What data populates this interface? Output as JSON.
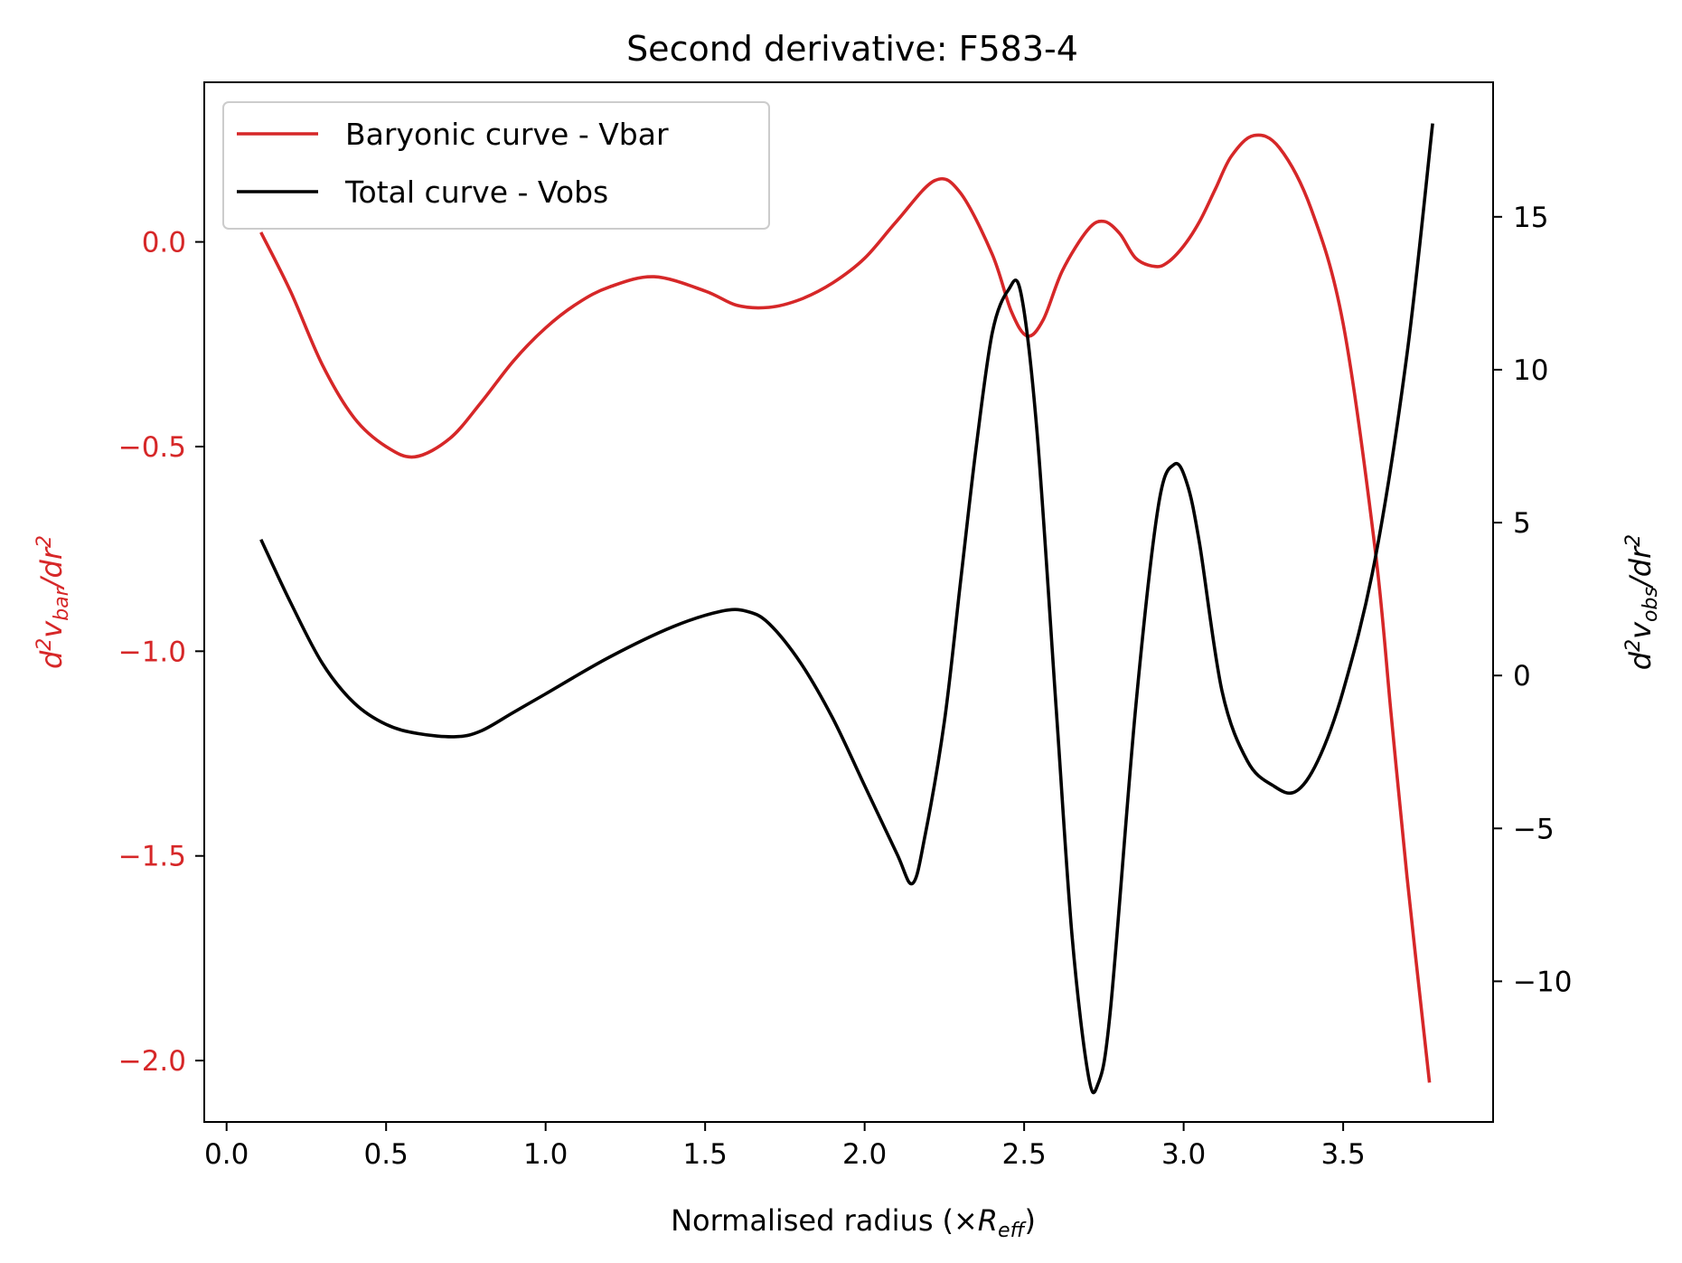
{
  "chart_data": {
    "type": "line",
    "title": "Second derivative: F583-4",
    "xlabel": "Normalised radius",
    "xlabel_math": {
      "prefix": "(×",
      "symbol": "R",
      "subscript": "eff",
      "suffix": ")"
    },
    "ylabel_left": {
      "d": "d",
      "sup": "2",
      "v": "v",
      "sub": "bar",
      "rest": "/dr",
      "sup2": "2"
    },
    "ylabel_right": {
      "d": "d",
      "sup": "2",
      "v": "v",
      "sub": "obs",
      "rest": "/dr",
      "sup2": "2"
    },
    "xlim": [
      -0.07,
      3.97
    ],
    "ylim_left": [
      -2.15,
      0.39
    ],
    "ylim_right": [
      -14.6,
      19.4
    ],
    "x_ticks": [
      0.0,
      0.5,
      1.0,
      1.5,
      2.0,
      2.5,
      3.0,
      3.5
    ],
    "x_tick_labels": [
      "0.0",
      "0.5",
      "1.0",
      "1.5",
      "2.0",
      "2.5",
      "3.0",
      "3.5"
    ],
    "y_left_ticks": [
      0.0,
      -0.5,
      -1.0,
      -1.5,
      -2.0
    ],
    "y_left_tick_labels": [
      "0.0",
      "−0.5",
      "−1.0",
      "−1.5",
      "−2.0"
    ],
    "y_right_ticks": [
      15,
      10,
      5,
      0,
      -5,
      -10
    ],
    "y_right_tick_labels": [
      "15",
      "10",
      "5",
      "0",
      "−5",
      "−10"
    ],
    "grid": false,
    "legend_position": "top-left",
    "left_axis_color": "#d62728",
    "right_axis_color": "#000000",
    "series": [
      {
        "name": "Baryonic curve - Vbar",
        "axis": "left",
        "color": "#d62728",
        "x": [
          0.11,
          0.2,
          0.3,
          0.4,
          0.5,
          0.59,
          0.7,
          0.8,
          0.9,
          1.0,
          1.1,
          1.2,
          1.34,
          1.5,
          1.6,
          1.7,
          1.8,
          1.9,
          2.0,
          2.1,
          2.22,
          2.3,
          2.4,
          2.46,
          2.51,
          2.56,
          2.62,
          2.7,
          2.75,
          2.8,
          2.85,
          2.91,
          2.95,
          3.0,
          3.05,
          3.1,
          3.15,
          3.22,
          3.3,
          3.4,
          3.5,
          3.6,
          3.65,
          3.7,
          3.77
        ],
        "y": [
          0.02,
          -0.12,
          -0.3,
          -0.43,
          -0.5,
          -0.525,
          -0.48,
          -0.39,
          -0.29,
          -0.21,
          -0.15,
          -0.11,
          -0.085,
          -0.12,
          -0.155,
          -0.16,
          -0.14,
          -0.1,
          -0.04,
          0.05,
          0.15,
          0.12,
          -0.03,
          -0.17,
          -0.23,
          -0.19,
          -0.07,
          0.03,
          0.05,
          0.02,
          -0.04,
          -0.06,
          -0.05,
          -0.01,
          0.05,
          0.13,
          0.21,
          0.26,
          0.23,
          0.08,
          -0.2,
          -0.75,
          -1.15,
          -1.55,
          -2.05
        ]
      },
      {
        "name": "Total curve - Vobs",
        "axis": "right",
        "color": "#000000",
        "x": [
          0.11,
          0.2,
          0.3,
          0.4,
          0.5,
          0.6,
          0.72,
          0.8,
          0.9,
          1.0,
          1.2,
          1.4,
          1.55,
          1.63,
          1.7,
          1.8,
          1.9,
          2.0,
          2.1,
          2.15,
          2.19,
          2.25,
          2.3,
          2.35,
          2.4,
          2.45,
          2.49,
          2.54,
          2.6,
          2.65,
          2.7,
          2.73,
          2.77,
          2.85,
          2.92,
          2.97,
          3.01,
          3.05,
          3.12,
          3.2,
          3.28,
          3.35,
          3.42,
          3.5,
          3.6,
          3.7,
          3.78
        ],
        "y": [
          4.4,
          2.4,
          0.4,
          -0.9,
          -1.6,
          -1.9,
          -2.0,
          -1.8,
          -1.2,
          -0.6,
          0.6,
          1.6,
          2.1,
          2.1,
          1.7,
          0.4,
          -1.4,
          -3.6,
          -5.8,
          -6.8,
          -5.2,
          -1.5,
          3.0,
          7.5,
          11.2,
          12.6,
          12.5,
          8.0,
          -1.0,
          -8.5,
          -13.0,
          -13.4,
          -11.0,
          -1.0,
          5.5,
          6.9,
          6.3,
          4.3,
          -0.5,
          -2.8,
          -3.6,
          -3.8,
          -2.8,
          -0.5,
          3.8,
          10.5,
          18.0
        ]
      }
    ]
  }
}
